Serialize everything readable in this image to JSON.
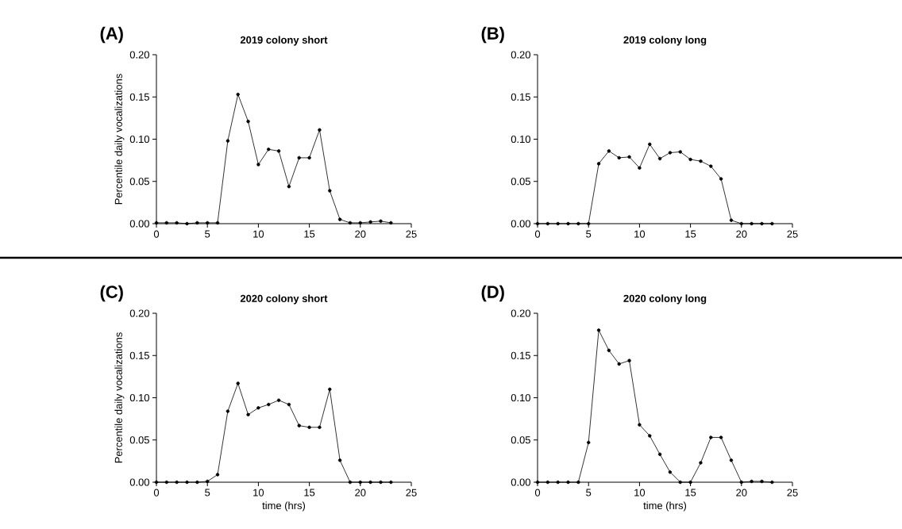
{
  "chart_data": [
    {
      "type": "line",
      "title": "2019 colony short",
      "ylabel": "Percentile daily vocalizations",
      "annotations": [
        "(A)"
      ],
      "marker": "circle",
      "color": "#000000",
      "xlim": [
        0,
        25
      ],
      "xticks": [
        0,
        5,
        10,
        15,
        20,
        25
      ],
      "ylim": [
        0,
        0.2
      ],
      "yticks": [
        {
          "value": 0,
          "label": "0.00"
        },
        {
          "value": 0.05,
          "label": "0.05"
        },
        {
          "value": 0.1,
          "label": "0.10"
        },
        {
          "value": 0.15,
          "label": "0.15"
        },
        {
          "value": 0.2,
          "label": "0.20"
        }
      ],
      "x": [
        0,
        1,
        2,
        3,
        4,
        5,
        6,
        7,
        8,
        9,
        10,
        11,
        12,
        13,
        14,
        15,
        16,
        17,
        18,
        19,
        20,
        21,
        22,
        23
      ],
      "values": [
        0.001,
        0.001,
        0.001,
        0,
        0.001,
        0.001,
        0.001,
        0.098,
        0.153,
        0.121,
        0.07,
        0.088,
        0.086,
        0.044,
        0.078,
        0.078,
        0.111,
        0.039,
        0.005,
        0.001,
        0.001,
        0.002,
        0.003,
        0.001
      ]
    },
    {
      "type": "line",
      "title": "2019 colony long",
      "annotations": [
        "(B)"
      ],
      "marker": "circle",
      "color": "#000000",
      "xlim": [
        0,
        25
      ],
      "xticks": [
        0,
        5,
        10,
        15,
        20,
        25
      ],
      "ylim": [
        0,
        0.2
      ],
      "yticks": [
        {
          "value": 0,
          "label": "0.00"
        },
        {
          "value": 0.05,
          "label": "0.05"
        },
        {
          "value": 0.1,
          "label": "0.10"
        },
        {
          "value": 0.15,
          "label": "0.15"
        },
        {
          "value": 0.2,
          "label": "0.20"
        }
      ],
      "x": [
        0,
        1,
        2,
        3,
        4,
        5,
        6,
        7,
        8,
        9,
        10,
        11,
        12,
        13,
        14,
        15,
        16,
        17,
        18,
        19,
        20,
        21,
        22,
        23
      ],
      "values": [
        0,
        0,
        0,
        0,
        0,
        0,
        0.071,
        0.086,
        0.078,
        0.079,
        0.066,
        0.094,
        0.077,
        0.084,
        0.085,
        0.076,
        0.074,
        0.068,
        0.053,
        0.004,
        0,
        0,
        0,
        0
      ]
    },
    {
      "type": "line",
      "title": "2020 colony short",
      "ylabel": "Percentile daily vocalizations",
      "xlabel": "time (hrs)",
      "annotations": [
        "(C)"
      ],
      "marker": "circle",
      "color": "#000000",
      "xlim": [
        0,
        25
      ],
      "xticks": [
        0,
        5,
        10,
        15,
        20,
        25
      ],
      "ylim": [
        0,
        0.2
      ],
      "yticks": [
        {
          "value": 0,
          "label": "0.00"
        },
        {
          "value": 0.05,
          "label": "0.05"
        },
        {
          "value": 0.1,
          "label": "0.10"
        },
        {
          "value": 0.15,
          "label": "0.15"
        },
        {
          "value": 0.2,
          "label": "0.20"
        }
      ],
      "x": [
        0,
        1,
        2,
        3,
        4,
        5,
        6,
        7,
        8,
        9,
        10,
        11,
        12,
        13,
        14,
        15,
        16,
        17,
        18,
        19,
        20,
        21,
        22,
        23
      ],
      "values": [
        0,
        0,
        0,
        0,
        0,
        0.001,
        0.009,
        0.084,
        0.117,
        0.08,
        0.088,
        0.092,
        0.097,
        0.092,
        0.067,
        0.065,
        0.065,
        0.11,
        0.026,
        0,
        0,
        0,
        0,
        0
      ]
    },
    {
      "type": "line",
      "title": "2020 colony long",
      "xlabel": "time (hrs)",
      "annotations": [
        "(D)"
      ],
      "marker": "circle",
      "color": "#000000",
      "xlim": [
        0,
        25
      ],
      "xticks": [
        0,
        5,
        10,
        15,
        20,
        25
      ],
      "ylim": [
        0,
        0.2
      ],
      "yticks": [
        {
          "value": 0,
          "label": "0.00"
        },
        {
          "value": 0.05,
          "label": "0.05"
        },
        {
          "value": 0.1,
          "label": "0.10"
        },
        {
          "value": 0.15,
          "label": "0.15"
        },
        {
          "value": 0.2,
          "label": "0.20"
        }
      ],
      "x": [
        0,
        1,
        2,
        3,
        4,
        5,
        6,
        7,
        8,
        9,
        10,
        11,
        12,
        13,
        14,
        15,
        16,
        17,
        18,
        19,
        20,
        21,
        22,
        23
      ],
      "values": [
        0,
        0,
        0,
        0,
        0,
        0.047,
        0.18,
        0.156,
        0.14,
        0.144,
        0.068,
        0.055,
        0.033,
        0.012,
        0,
        0,
        0.023,
        0.053,
        0.053,
        0.026,
        0,
        0.001,
        0.001,
        0
      ]
    }
  ]
}
